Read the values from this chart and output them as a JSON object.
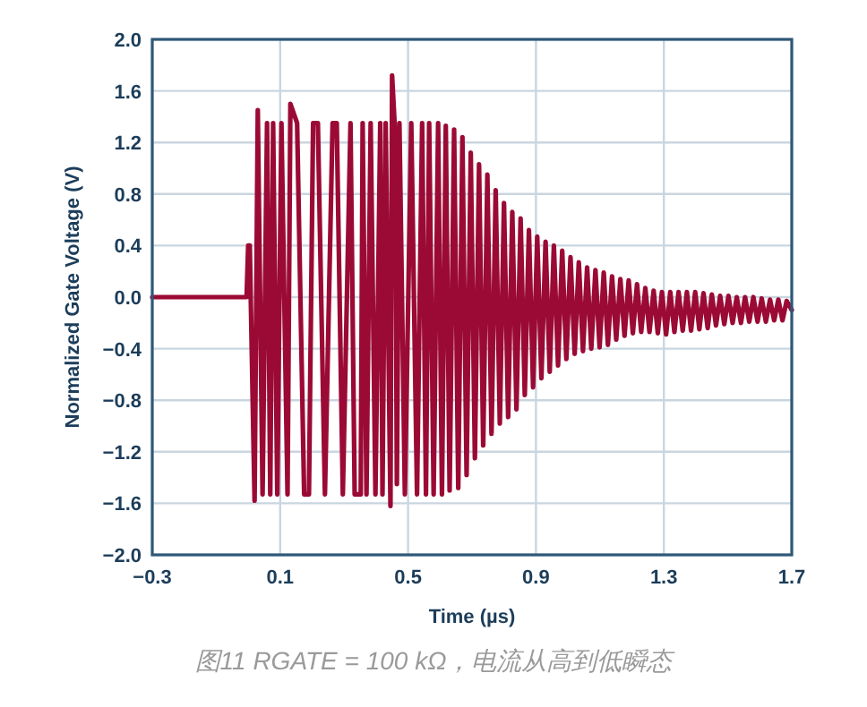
{
  "chart_data": {
    "type": "line",
    "xlabel": "Time (µs)",
    "ylabel": "Normalized Gate Voltage (V)",
    "annotations": [
      "图11 RGATE = 100 kΩ，电流从高到低瞬态"
    ],
    "xlim": [
      -0.3,
      1.7
    ],
    "ylim": [
      -2.0,
      2.0
    ],
    "xticks": [
      {
        "value": -0.3,
        "label": "−0.3"
      },
      0.1,
      0.5,
      0.9,
      1.3,
      1.7
    ],
    "yticks": [
      {
        "value": -2.0,
        "label": "−2.0"
      },
      {
        "value": -1.6,
        "label": "−1.6"
      },
      {
        "value": -1.2,
        "label": "−1.2"
      },
      {
        "value": -0.8,
        "label": "−0.8"
      },
      {
        "value": -0.4,
        "label": "−0.4"
      },
      {
        "value": 0,
        "label": "0.0"
      },
      0.4,
      0.8,
      1.2,
      1.6,
      {
        "value": 2,
        "label": "2.0"
      }
    ],
    "grid": true,
    "marker": "none",
    "line_style": "solid",
    "series": [
      {
        "color": "#9b0a35",
        "x": [
          -0.3,
          -0.005,
          0.0,
          0.005,
          0.02,
          0.03,
          0.045,
          0.059,
          0.069,
          0.078,
          0.091,
          0.104,
          0.123,
          0.132,
          0.153,
          0.175,
          0.19,
          0.203,
          0.218,
          0.24,
          0.264,
          0.277,
          0.296,
          0.32,
          0.333,
          0.352,
          0.358,
          0.37,
          0.383,
          0.398,
          0.413,
          0.42,
          0.43,
          0.445,
          0.45,
          0.46,
          0.465,
          0.473,
          0.49,
          0.51,
          0.528,
          0.544,
          0.556,
          0.566,
          0.58,
          0.594,
          0.606,
          0.618,
          0.63,
          0.644,
          0.657,
          0.67,
          0.683,
          0.696,
          0.709,
          0.722,
          0.735,
          0.748,
          0.761,
          0.774,
          0.787,
          0.8,
          0.813,
          0.826,
          0.839,
          0.852,
          0.865,
          0.878,
          0.891,
          0.904,
          0.917,
          0.93,
          0.943,
          0.956,
          0.969,
          0.982,
          0.995,
          1.008,
          1.021,
          1.034,
          1.047,
          1.06,
          1.073,
          1.086,
          1.099,
          1.112,
          1.125,
          1.138,
          1.151,
          1.164,
          1.177,
          1.19,
          1.203,
          1.216,
          1.229,
          1.242,
          1.255,
          1.268,
          1.281,
          1.294,
          1.307,
          1.32,
          1.333,
          1.346,
          1.359,
          1.372,
          1.385,
          1.398,
          1.411,
          1.424,
          1.437,
          1.45,
          1.463,
          1.476,
          1.489,
          1.502,
          1.515,
          1.528,
          1.541,
          1.554,
          1.567,
          1.58,
          1.593,
          1.606,
          1.619,
          1.632,
          1.645,
          1.658,
          1.671,
          1.684,
          1.7
        ],
        "values": [
          0,
          0,
          0.4,
          0.4,
          -1.58,
          1.45,
          -1.53,
          1.35,
          -1.53,
          1.35,
          -1.53,
          1.35,
          -1.53,
          1.5,
          1.35,
          -1.53,
          -1.53,
          1.35,
          1.35,
          -1.53,
          1.35,
          1.35,
          -1.53,
          1.35,
          -1.53,
          -1.53,
          1.35,
          -1.53,
          1.35,
          -1.53,
          1.35,
          -1.53,
          1.35,
          -1.62,
          1.72,
          1.25,
          -1.45,
          1.35,
          -1.53,
          1.35,
          -1.53,
          1.35,
          -1.53,
          1.35,
          -1.53,
          1.35,
          -1.53,
          1.33,
          -1.5,
          1.3,
          -1.48,
          1.24,
          -1.38,
          1.12,
          -1.25,
          1.03,
          -1.15,
          0.95,
          -1.06,
          0.83,
          -0.98,
          0.73,
          -0.93,
          0.66,
          -0.87,
          0.61,
          -0.76,
          0.52,
          -0.7,
          0.47,
          -0.63,
          0.43,
          -0.58,
          0.4,
          -0.53,
          0.36,
          -0.48,
          0.31,
          -0.44,
          0.27,
          -0.42,
          0.23,
          -0.4,
          0.21,
          -0.39,
          0.19,
          -0.37,
          0.16,
          -0.33,
          0.14,
          -0.3,
          0.13,
          -0.28,
          0.1,
          -0.27,
          0.07,
          -0.27,
          0.05,
          -0.28,
          0.04,
          -0.29,
          0.04,
          -0.27,
          0.04,
          -0.26,
          0.04,
          -0.26,
          0.04,
          -0.25,
          0.03,
          -0.24,
          0.02,
          -0.22,
          0.01,
          -0.21,
          0.01,
          -0.2,
          0.0,
          -0.2,
          0.0,
          -0.19,
          0.0,
          -0.19,
          -0.01,
          -0.19,
          -0.02,
          -0.18,
          -0.02,
          -0.18,
          -0.03,
          -0.1
        ]
      }
    ]
  }
}
